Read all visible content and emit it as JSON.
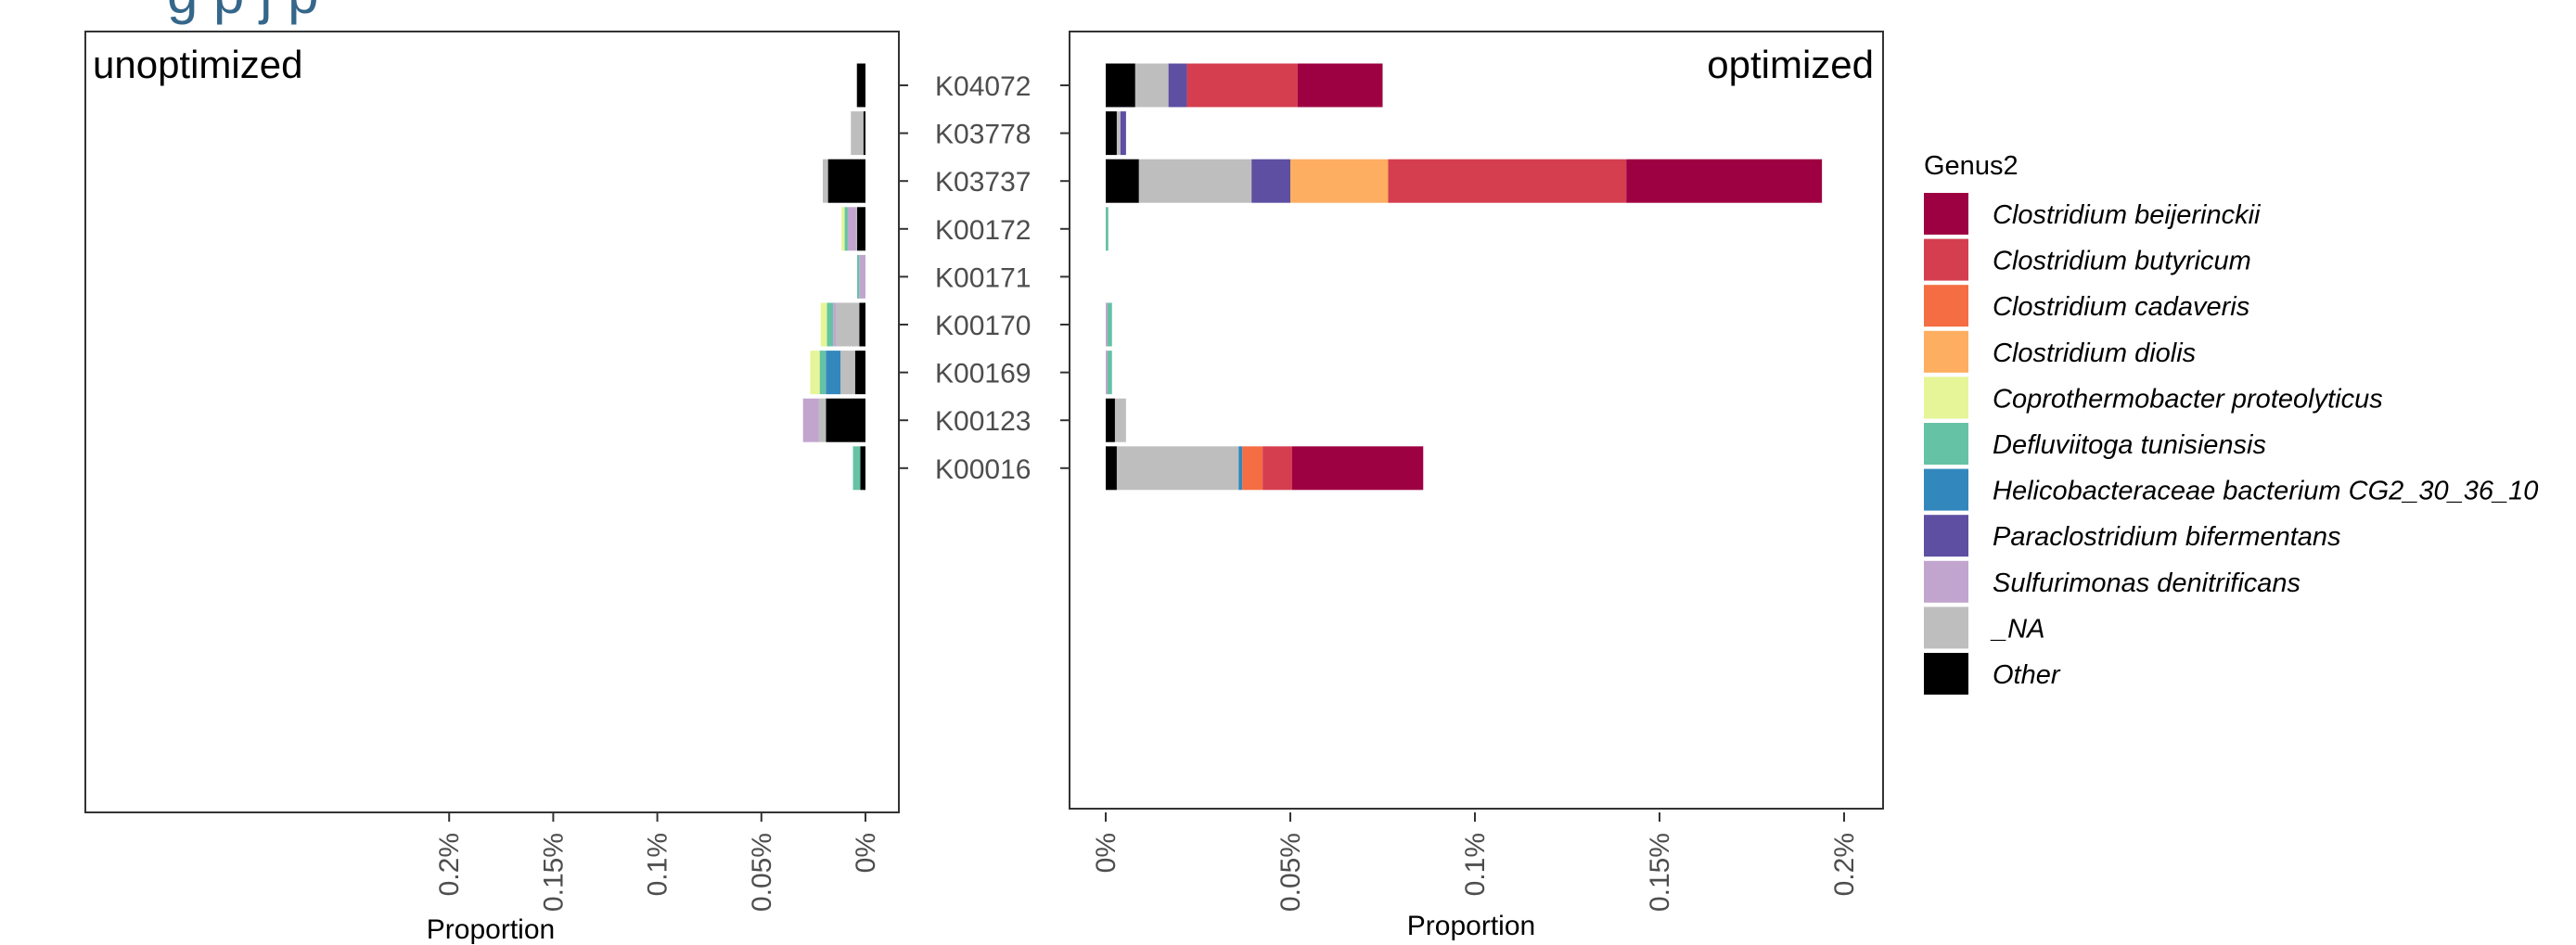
{
  "header": {
    "title_fragment": "g              p      j                                               p"
  },
  "legend": {
    "title": "Genus2",
    "items": [
      {
        "label": "Clostridium beijerinckii",
        "color": "#9E0142"
      },
      {
        "label": "Clostridium butyricum",
        "color": "#D53E4F"
      },
      {
        "label": "Clostridium cadaveris",
        "color": "#F46D43"
      },
      {
        "label": "Clostridium diolis",
        "color": "#FDAE61"
      },
      {
        "label": "Coprothermobacter proteolyticus",
        "color": "#E6F598"
      },
      {
        "label": "Defluviitoga tunisiensis",
        "color": "#66C2A5"
      },
      {
        "label": "Helicobacteraceae bacterium CG2_30_36_10",
        "color": "#3288BD"
      },
      {
        "label": "Paraclostridium bifermentans",
        "color": "#5E4FA2"
      },
      {
        "label": "Sulfurimonas denitrificans",
        "color": "#C2A5CF"
      },
      {
        "label": "_NA",
        "color": "#BEBEBE"
      },
      {
        "label": "Other",
        "color": "#000000"
      }
    ]
  },
  "chart_data": [
    {
      "type": "bar",
      "orientation": "horizontal",
      "stacked": true,
      "x_reversed": true,
      "panel_label": "unoptimized",
      "xlabel": "Proportion",
      "ylabel": "",
      "xlim": [
        0,
        0.21
      ],
      "x_tick_values": [
        0.2,
        0.15,
        0.1,
        0.05,
        0
      ],
      "x_tick_labels": [
        "0.2%",
        "0.15%",
        "0.1%",
        "0.05%",
        "0%"
      ],
      "categories": [
        "K04072",
        "K03778",
        "K03737",
        "K00172",
        "K00171",
        "K00170",
        "K00169",
        "K00123",
        "K00016"
      ],
      "series": [
        {
          "name": "Other",
          "values": [
            0.004,
            0.001,
            0.018,
            0.004,
            0,
            0.003,
            0.005,
            0.019,
            0.0025
          ]
        },
        {
          "name": "_NA",
          "values": [
            0.0005,
            0.006,
            0.0025,
            0.0005,
            0,
            0.011,
            0.007,
            0.0035,
            0
          ]
        },
        {
          "name": "Sulfurimonas denitrificans",
          "values": [
            0,
            0,
            0,
            0.004,
            0.003,
            0.0015,
            0,
            0.0075,
            0
          ]
        },
        {
          "name": "Paraclostridium bifermentans",
          "values": [
            0,
            0,
            0,
            0,
            0,
            0,
            0,
            0,
            0
          ]
        },
        {
          "name": "Helicobacteraceae bacterium CG2_30_36_10",
          "values": [
            0,
            0,
            0,
            0,
            0,
            0,
            0.007,
            0,
            0
          ]
        },
        {
          "name": "Defluviitoga tunisiensis",
          "values": [
            0,
            0,
            0,
            0.0015,
            0.001,
            0.003,
            0.003,
            0,
            0.0035
          ]
        },
        {
          "name": "Coprothermobacter proteolyticus",
          "values": [
            0,
            0,
            0,
            0.0015,
            0,
            0.003,
            0.0045,
            0,
            0
          ]
        },
        {
          "name": "Clostridium diolis",
          "values": [
            0,
            0,
            0,
            0,
            0,
            0,
            0,
            0,
            0
          ]
        },
        {
          "name": "Clostridium cadaveris",
          "values": [
            0,
            0,
            0,
            0,
            0,
            0,
            0,
            0,
            0
          ]
        },
        {
          "name": "Clostridium butyricum",
          "values": [
            0,
            0,
            0,
            0,
            0,
            0,
            0,
            0,
            0
          ]
        },
        {
          "name": "Clostridium beijerinckii",
          "values": [
            0,
            0,
            0,
            0,
            0,
            0,
            0,
            0,
            0
          ]
        }
      ]
    },
    {
      "type": "bar",
      "orientation": "horizontal",
      "stacked": true,
      "panel_label": "optimized",
      "xlabel": "Proportion",
      "ylabel": "",
      "xlim": [
        -0.0007,
        0.209
      ],
      "x_tick_values": [
        0,
        0.05,
        0.1,
        0.15,
        0.2
      ],
      "x_tick_labels": [
        "0%",
        "0.05%",
        "0.1%",
        "0.15%",
        "0.2%"
      ],
      "categories": [
        "K04072",
        "K03778",
        "K03737",
        "K00172",
        "K00171",
        "K00170",
        "K00169",
        "K00123",
        "K00016"
      ],
      "series": [
        {
          "name": "Other",
          "values": [
            0.008,
            0.003,
            0.009,
            0,
            0,
            0,
            0,
            0.0025,
            0.003
          ]
        },
        {
          "name": "_NA",
          "values": [
            0.009,
            0.001,
            0.0305,
            0,
            0,
            0,
            0,
            0.003,
            0.033
          ]
        },
        {
          "name": "Sulfurimonas denitrificans",
          "values": [
            0,
            0,
            0,
            0,
            0,
            0.0005,
            0.0005,
            0,
            0
          ]
        },
        {
          "name": "Paraclostridium bifermentans",
          "values": [
            0.005,
            0.0015,
            0.0105,
            0,
            0,
            0,
            0,
            0,
            0
          ]
        },
        {
          "name": "Helicobacteraceae bacterium CG2_30_36_10",
          "values": [
            0,
            0,
            0,
            0,
            0,
            0,
            0,
            0,
            0.001
          ]
        },
        {
          "name": "Defluviitoga tunisiensis",
          "values": [
            0,
            0,
            0,
            0.0007,
            0,
            0.0012,
            0.0012,
            0,
            0
          ]
        },
        {
          "name": "Coprothermobacter proteolyticus",
          "values": [
            0,
            0,
            0,
            0,
            0,
            0,
            0,
            0,
            0
          ]
        },
        {
          "name": "Clostridium diolis",
          "values": [
            0,
            0,
            0.0265,
            0,
            0,
            0,
            0,
            0,
            0
          ]
        },
        {
          "name": "Clostridium cadaveris",
          "values": [
            0,
            0,
            0,
            0,
            0,
            0,
            0,
            0,
            0.0055
          ]
        },
        {
          "name": "Clostridium butyricum",
          "values": [
            0.03,
            0,
            0.0645,
            0,
            0,
            0,
            0,
            0,
            0.008
          ]
        },
        {
          "name": "Clostridium beijerinckii",
          "values": [
            0.023,
            0,
            0.053,
            0,
            0,
            0,
            0,
            0,
            0.0355
          ]
        }
      ]
    }
  ]
}
